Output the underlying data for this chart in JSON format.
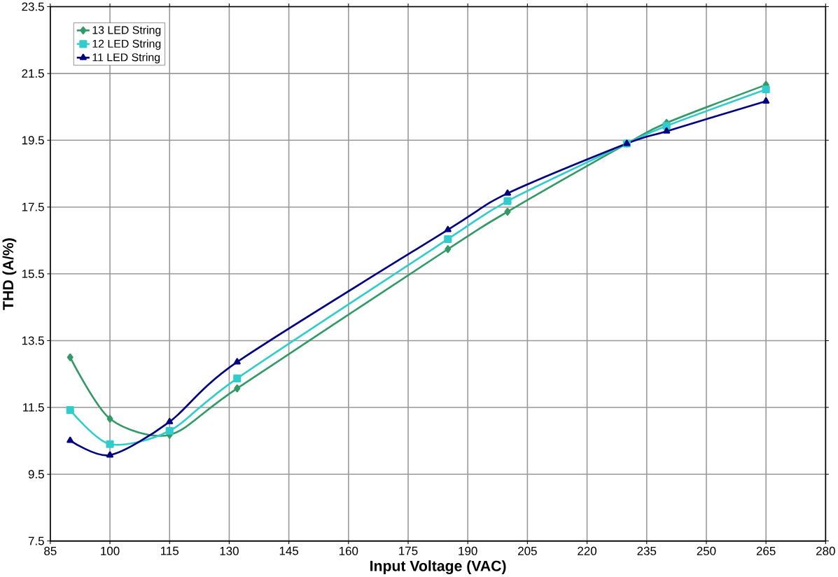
{
  "chart_data": {
    "type": "line",
    "xlabel": "Input Voltage (VAC)",
    "ylabel": "THD (A/%)",
    "x": [
      90,
      100,
      115,
      132,
      185,
      200,
      230,
      240,
      265
    ],
    "series": [
      {
        "name": "13 LED String",
        "color": "#339966",
        "marker": "diamond",
        "values": [
          13.0,
          11.16,
          10.68,
          12.07,
          16.24,
          17.36,
          19.4,
          20.02,
          21.16
        ]
      },
      {
        "name": "12 LED String",
        "color": "#33cccc",
        "marker": "square",
        "values": [
          11.42,
          10.4,
          10.8,
          12.37,
          16.54,
          17.68,
          19.4,
          19.93,
          21.02
        ]
      },
      {
        "name": "11 LED String",
        "color": "#000080",
        "marker": "triangle",
        "values": [
          10.51,
          10.07,
          11.07,
          12.86,
          16.82,
          17.91,
          19.4,
          19.77,
          20.67
        ]
      }
    ],
    "xlim": [
      85,
      280
    ],
    "xticks": [
      85,
      100,
      115,
      130,
      145,
      160,
      175,
      190,
      205,
      220,
      235,
      250,
      265,
      280
    ],
    "ylim": [
      7.5,
      23.5
    ],
    "yticks": [
      7.5,
      9.5,
      11.5,
      13.5,
      15.5,
      17.5,
      19.5,
      21.5,
      23.5
    ],
    "grid": true,
    "legend": "top left",
    "line_style": "solid"
  }
}
